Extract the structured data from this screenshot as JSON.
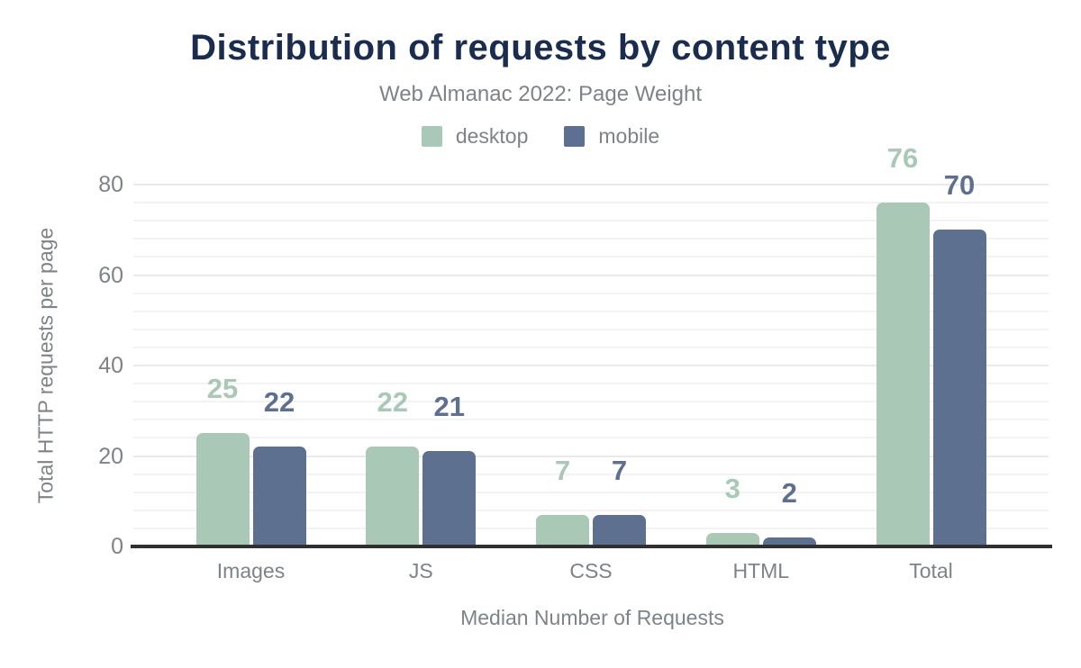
{
  "chart_data": {
    "type": "bar",
    "title": "Distribution of requests by content type",
    "subtitle": "Web Almanac 2022: Page Weight",
    "categories": [
      "Images",
      "JS",
      "CSS",
      "HTML",
      "Total"
    ],
    "series": [
      {
        "name": "desktop",
        "color": "#aac8b6",
        "values": [
          25,
          22,
          7,
          3,
          76
        ]
      },
      {
        "name": "mobile",
        "color": "#5e7090",
        "values": [
          22,
          21,
          7,
          2,
          70
        ]
      }
    ],
    "xlabel": "Median Number of Requests",
    "ylabel": "Total HTTP requests per page",
    "ylim": [
      0,
      80
    ],
    "yticks": [
      0,
      20,
      40,
      60,
      80
    ],
    "grid": "horizontal; faint minor lines every 4 units, major every 20; grid on",
    "legend_position": "top-center",
    "value_labels": "bold number above each bar, colored to match its series"
  },
  "colors": {
    "title": "#1b2d4e",
    "text": "#7e8388",
    "axis_line": "#303030",
    "gridline_minor": "#f3f3f4",
    "gridline_major": "#e9eaec",
    "background": "#ffffff",
    "desktop": "#aac8b6",
    "mobile": "#5e7090"
  }
}
